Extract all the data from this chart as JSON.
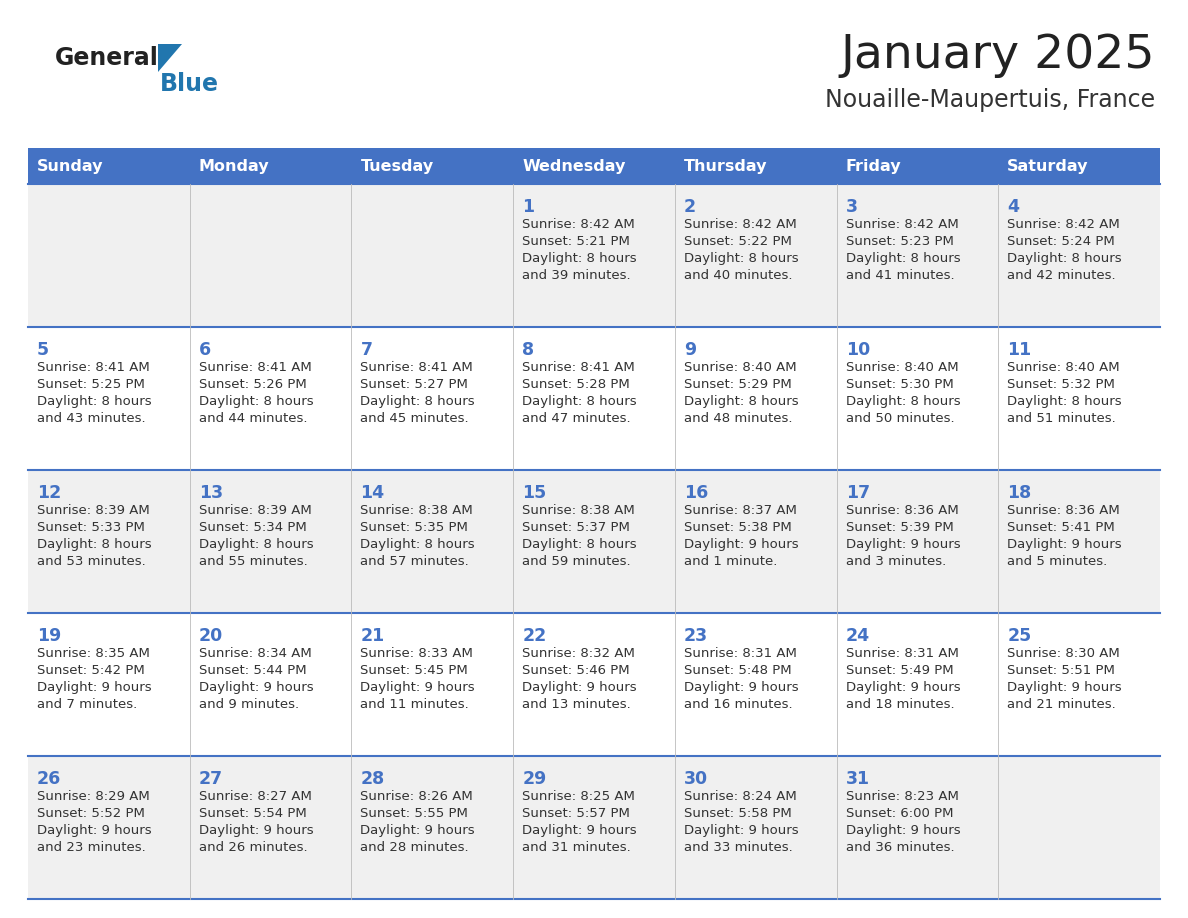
{
  "title": "January 2025",
  "subtitle": "Nouaille-Maupertuis, France",
  "header_bg": "#4472C4",
  "header_text": "#FFFFFF",
  "row_bg_light": "#F0F0F0",
  "row_bg_white": "#FFFFFF",
  "cell_border": "#4472C4",
  "day_number_color": "#4472C4",
  "text_color": "#333333",
  "day_names": [
    "Sunday",
    "Monday",
    "Tuesday",
    "Wednesday",
    "Thursday",
    "Friday",
    "Saturday"
  ],
  "title_color": "#222222",
  "subtitle_color": "#333333",
  "logo_general_color": "#222222",
  "logo_blue_color": "#2176AE",
  "weeks": [
    [
      {
        "day": null,
        "sunrise": null,
        "sunset": null,
        "daylight_line1": null,
        "daylight_line2": null
      },
      {
        "day": null,
        "sunrise": null,
        "sunset": null,
        "daylight_line1": null,
        "daylight_line2": null
      },
      {
        "day": null,
        "sunrise": null,
        "sunset": null,
        "daylight_line1": null,
        "daylight_line2": null
      },
      {
        "day": 1,
        "sunrise": "Sunrise: 8:42 AM",
        "sunset": "Sunset: 5:21 PM",
        "daylight_line1": "Daylight: 8 hours",
        "daylight_line2": "and 39 minutes."
      },
      {
        "day": 2,
        "sunrise": "Sunrise: 8:42 AM",
        "sunset": "Sunset: 5:22 PM",
        "daylight_line1": "Daylight: 8 hours",
        "daylight_line2": "and 40 minutes."
      },
      {
        "day": 3,
        "sunrise": "Sunrise: 8:42 AM",
        "sunset": "Sunset: 5:23 PM",
        "daylight_line1": "Daylight: 8 hours",
        "daylight_line2": "and 41 minutes."
      },
      {
        "day": 4,
        "sunrise": "Sunrise: 8:42 AM",
        "sunset": "Sunset: 5:24 PM",
        "daylight_line1": "Daylight: 8 hours",
        "daylight_line2": "and 42 minutes."
      }
    ],
    [
      {
        "day": 5,
        "sunrise": "Sunrise: 8:41 AM",
        "sunset": "Sunset: 5:25 PM",
        "daylight_line1": "Daylight: 8 hours",
        "daylight_line2": "and 43 minutes."
      },
      {
        "day": 6,
        "sunrise": "Sunrise: 8:41 AM",
        "sunset": "Sunset: 5:26 PM",
        "daylight_line1": "Daylight: 8 hours",
        "daylight_line2": "and 44 minutes."
      },
      {
        "day": 7,
        "sunrise": "Sunrise: 8:41 AM",
        "sunset": "Sunset: 5:27 PM",
        "daylight_line1": "Daylight: 8 hours",
        "daylight_line2": "and 45 minutes."
      },
      {
        "day": 8,
        "sunrise": "Sunrise: 8:41 AM",
        "sunset": "Sunset: 5:28 PM",
        "daylight_line1": "Daylight: 8 hours",
        "daylight_line2": "and 47 minutes."
      },
      {
        "day": 9,
        "sunrise": "Sunrise: 8:40 AM",
        "sunset": "Sunset: 5:29 PM",
        "daylight_line1": "Daylight: 8 hours",
        "daylight_line2": "and 48 minutes."
      },
      {
        "day": 10,
        "sunrise": "Sunrise: 8:40 AM",
        "sunset": "Sunset: 5:30 PM",
        "daylight_line1": "Daylight: 8 hours",
        "daylight_line2": "and 50 minutes."
      },
      {
        "day": 11,
        "sunrise": "Sunrise: 8:40 AM",
        "sunset": "Sunset: 5:32 PM",
        "daylight_line1": "Daylight: 8 hours",
        "daylight_line2": "and 51 minutes."
      }
    ],
    [
      {
        "day": 12,
        "sunrise": "Sunrise: 8:39 AM",
        "sunset": "Sunset: 5:33 PM",
        "daylight_line1": "Daylight: 8 hours",
        "daylight_line2": "and 53 minutes."
      },
      {
        "day": 13,
        "sunrise": "Sunrise: 8:39 AM",
        "sunset": "Sunset: 5:34 PM",
        "daylight_line1": "Daylight: 8 hours",
        "daylight_line2": "and 55 minutes."
      },
      {
        "day": 14,
        "sunrise": "Sunrise: 8:38 AM",
        "sunset": "Sunset: 5:35 PM",
        "daylight_line1": "Daylight: 8 hours",
        "daylight_line2": "and 57 minutes."
      },
      {
        "day": 15,
        "sunrise": "Sunrise: 8:38 AM",
        "sunset": "Sunset: 5:37 PM",
        "daylight_line1": "Daylight: 8 hours",
        "daylight_line2": "and 59 minutes."
      },
      {
        "day": 16,
        "sunrise": "Sunrise: 8:37 AM",
        "sunset": "Sunset: 5:38 PM",
        "daylight_line1": "Daylight: 9 hours",
        "daylight_line2": "and 1 minute."
      },
      {
        "day": 17,
        "sunrise": "Sunrise: 8:36 AM",
        "sunset": "Sunset: 5:39 PM",
        "daylight_line1": "Daylight: 9 hours",
        "daylight_line2": "and 3 minutes."
      },
      {
        "day": 18,
        "sunrise": "Sunrise: 8:36 AM",
        "sunset": "Sunset: 5:41 PM",
        "daylight_line1": "Daylight: 9 hours",
        "daylight_line2": "and 5 minutes."
      }
    ],
    [
      {
        "day": 19,
        "sunrise": "Sunrise: 8:35 AM",
        "sunset": "Sunset: 5:42 PM",
        "daylight_line1": "Daylight: 9 hours",
        "daylight_line2": "and 7 minutes."
      },
      {
        "day": 20,
        "sunrise": "Sunrise: 8:34 AM",
        "sunset": "Sunset: 5:44 PM",
        "daylight_line1": "Daylight: 9 hours",
        "daylight_line2": "and 9 minutes."
      },
      {
        "day": 21,
        "sunrise": "Sunrise: 8:33 AM",
        "sunset": "Sunset: 5:45 PM",
        "daylight_line1": "Daylight: 9 hours",
        "daylight_line2": "and 11 minutes."
      },
      {
        "day": 22,
        "sunrise": "Sunrise: 8:32 AM",
        "sunset": "Sunset: 5:46 PM",
        "daylight_line1": "Daylight: 9 hours",
        "daylight_line2": "and 13 minutes."
      },
      {
        "day": 23,
        "sunrise": "Sunrise: 8:31 AM",
        "sunset": "Sunset: 5:48 PM",
        "daylight_line1": "Daylight: 9 hours",
        "daylight_line2": "and 16 minutes."
      },
      {
        "day": 24,
        "sunrise": "Sunrise: 8:31 AM",
        "sunset": "Sunset: 5:49 PM",
        "daylight_line1": "Daylight: 9 hours",
        "daylight_line2": "and 18 minutes."
      },
      {
        "day": 25,
        "sunrise": "Sunrise: 8:30 AM",
        "sunset": "Sunset: 5:51 PM",
        "daylight_line1": "Daylight: 9 hours",
        "daylight_line2": "and 21 minutes."
      }
    ],
    [
      {
        "day": 26,
        "sunrise": "Sunrise: 8:29 AM",
        "sunset": "Sunset: 5:52 PM",
        "daylight_line1": "Daylight: 9 hours",
        "daylight_line2": "and 23 minutes."
      },
      {
        "day": 27,
        "sunrise": "Sunrise: 8:27 AM",
        "sunset": "Sunset: 5:54 PM",
        "daylight_line1": "Daylight: 9 hours",
        "daylight_line2": "and 26 minutes."
      },
      {
        "day": 28,
        "sunrise": "Sunrise: 8:26 AM",
        "sunset": "Sunset: 5:55 PM",
        "daylight_line1": "Daylight: 9 hours",
        "daylight_line2": "and 28 minutes."
      },
      {
        "day": 29,
        "sunrise": "Sunrise: 8:25 AM",
        "sunset": "Sunset: 5:57 PM",
        "daylight_line1": "Daylight: 9 hours",
        "daylight_line2": "and 31 minutes."
      },
      {
        "day": 30,
        "sunrise": "Sunrise: 8:24 AM",
        "sunset": "Sunset: 5:58 PM",
        "daylight_line1": "Daylight: 9 hours",
        "daylight_line2": "and 33 minutes."
      },
      {
        "day": 31,
        "sunrise": "Sunrise: 8:23 AM",
        "sunset": "Sunset: 6:00 PM",
        "daylight_line1": "Daylight: 9 hours",
        "daylight_line2": "and 36 minutes."
      },
      {
        "day": null,
        "sunrise": null,
        "sunset": null,
        "daylight_line1": null,
        "daylight_line2": null
      }
    ]
  ]
}
